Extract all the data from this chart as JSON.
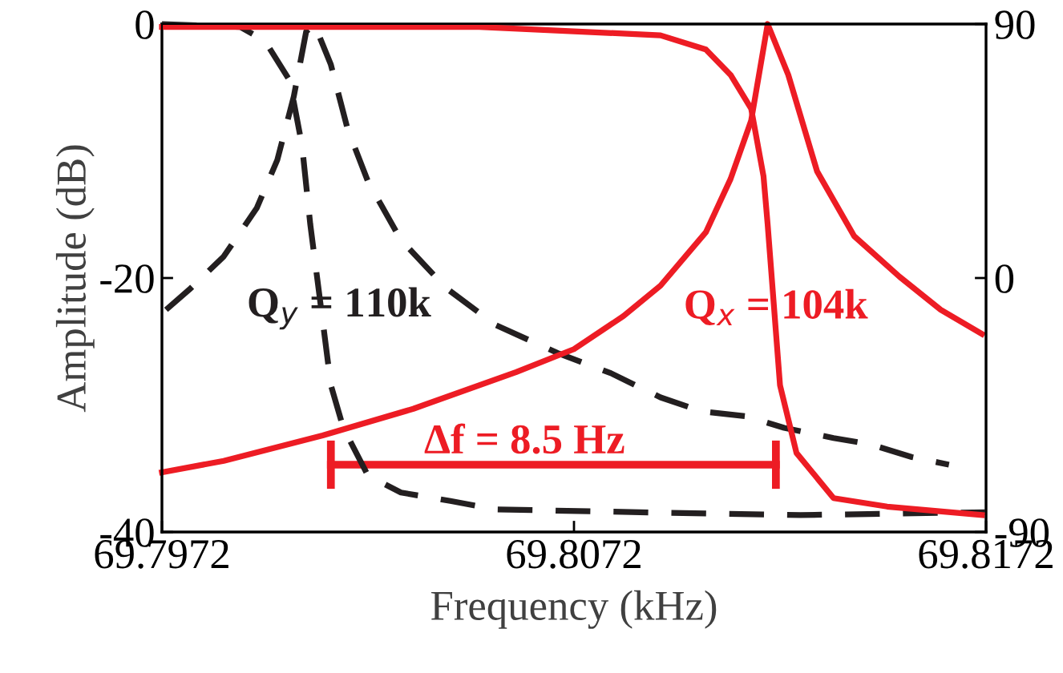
{
  "chart_data": {
    "type": "line",
    "xlabel": "Frequency (kHz)",
    "ylabel": "Amplitude (dB)",
    "xlim": [
      69.7972,
      69.8172
    ],
    "xticks": [
      69.7972,
      69.8072,
      69.8172
    ],
    "ylim": [
      -40,
      0
    ],
    "yticks": [
      -40,
      -20,
      0
    ],
    "y2lim": [
      -90,
      90
    ],
    "y2ticks": [
      -90,
      0,
      90
    ],
    "grid": false,
    "legend": false,
    "marker": "none",
    "series": [
      {
        "color": "#231f20",
        "line_style": "dashed",
        "x": [
          69.7973,
          69.7979,
          69.7987,
          69.7995,
          69.8,
          69.8004,
          69.8007,
          69.8009,
          69.8013,
          69.8017,
          69.8022,
          69.803,
          69.8041,
          69.8053,
          69.8068,
          69.8081,
          69.8093,
          69.8103,
          69.8114,
          69.8123,
          69.8135,
          69.8144,
          69.8154,
          69.8163
        ],
        "values": [
          -22.5,
          -20.8,
          -18.3,
          -14.5,
          -10.7,
          -5.7,
          -0.6,
          0,
          -3.2,
          -8.2,
          -12.4,
          -17.0,
          -20.8,
          -23.7,
          -25.9,
          -27.5,
          -29.4,
          -30.5,
          -30.9,
          -31.8,
          -32.6,
          -33.1,
          -34.1,
          -34.7
        ]
      },
      {
        "color": "#231f20",
        "line_style": "dashed",
        "axis": "y2",
        "x": [
          69.7972,
          69.7991,
          69.7997,
          69.8003,
          69.8006,
          69.8008,
          69.8011,
          69.8013,
          69.8016,
          69.8022,
          69.803,
          69.8042,
          69.8053,
          69.8088,
          69.8127,
          69.8172
        ],
        "values": [
          90,
          89,
          84,
          70,
          47,
          19,
          -15,
          -38,
          -53,
          -70,
          -76,
          -79,
          -82,
          -83,
          -84,
          -83
        ]
      },
      {
        "color": "#ed1c24",
        "line_style": "solid",
        "x": [
          69.7972,
          69.7987,
          69.8011,
          69.8033,
          69.8058,
          69.8072,
          69.8084,
          69.8093,
          69.8104,
          69.811,
          69.8115,
          69.8119,
          69.8124,
          69.8131,
          69.814,
          69.8151,
          69.8161,
          69.8171
        ],
        "values": [
          -35.3,
          -34.4,
          -32.4,
          -30.3,
          -27.4,
          -25.6,
          -23.0,
          -20.6,
          -16.4,
          -12.2,
          -7.6,
          0,
          -4.0,
          -11.6,
          -16.7,
          -19.9,
          -22.5,
          -24.4
        ]
      },
      {
        "color": "#ed1c24",
        "line_style": "solid",
        "axis": "y2",
        "x": [
          69.7972,
          69.8049,
          69.8093,
          69.8104,
          69.811,
          69.8115,
          69.8118,
          69.8119,
          69.8122,
          69.8126,
          69.8135,
          69.8148,
          69.8171
        ],
        "values": [
          89,
          89,
          86,
          81,
          72,
          60,
          36,
          19,
          -38,
          -62,
          -78,
          -81,
          -84
        ]
      },
      {
        "color": "#ed1c24",
        "line_style": "solid",
        "x": [
          69.8013,
          69.8121
        ],
        "values": [
          -34.7,
          -34.7
        ],
        "errors": [
          1.9,
          1.9
        ]
      }
    ],
    "annotations": [
      "Q$_{y}$ = 110k",
      "Q$_{x}$ = 104k",
      "Δf = 8.5 Hz"
    ]
  }
}
